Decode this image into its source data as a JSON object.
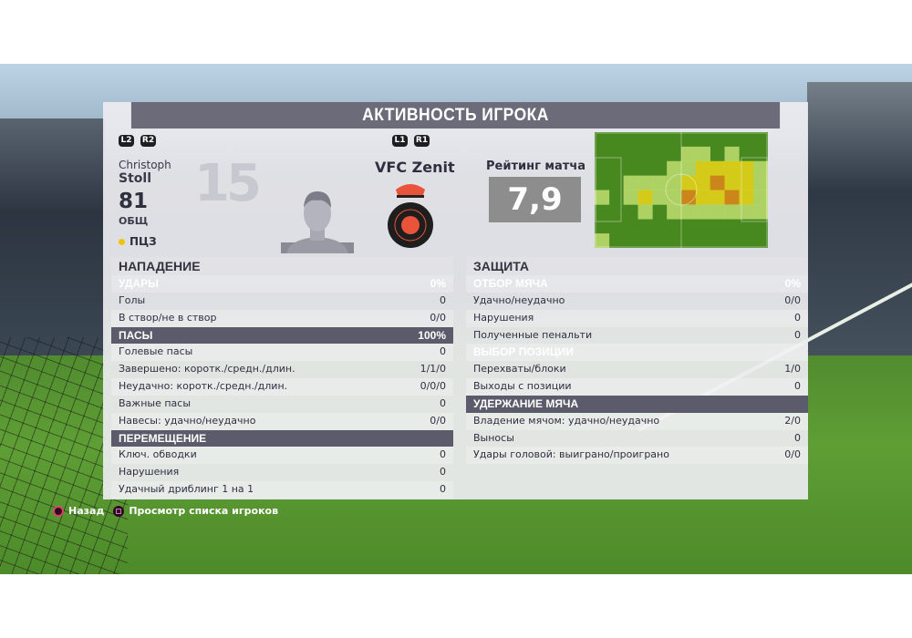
{
  "title": "АКТИВНОСТЬ ИГРОКА",
  "buttons": {
    "l2": "L2",
    "r2": "R2",
    "l1": "L1",
    "r1": "R1"
  },
  "player": {
    "first_name": "Christoph",
    "last_name": "Stoll",
    "number": "15",
    "overall": "81",
    "overall_label": "ОБЩ",
    "position": "ПЦЗ",
    "position_color": "#f2c200"
  },
  "team": {
    "name": "VFC Zenit",
    "badge_color": "#e8533a"
  },
  "rating": {
    "label": "Рейтинг матча",
    "value": "7,9"
  },
  "heatmap": {
    "cols": 12,
    "rows": 8,
    "colors": [
      "#47891f",
      "#b9d96a",
      "#e2d21a",
      "#d8861a"
    ],
    "levels": [
      [
        0,
        0,
        0,
        0,
        0,
        0,
        0,
        0,
        0,
        0,
        0,
        0
      ],
      [
        0,
        0,
        0,
        0,
        0,
        0,
        1,
        1,
        0,
        1,
        0,
        0
      ],
      [
        0,
        0,
        0,
        0,
        0,
        1,
        1,
        2,
        2,
        2,
        2,
        1
      ],
      [
        0,
        0,
        1,
        1,
        1,
        1,
        2,
        2,
        3,
        2,
        2,
        1
      ],
      [
        1,
        0,
        1,
        2,
        1,
        1,
        3,
        2,
        2,
        3,
        2,
        1
      ],
      [
        0,
        0,
        0,
        1,
        0,
        1,
        1,
        1,
        1,
        1,
        1,
        1
      ],
      [
        0,
        0,
        0,
        0,
        0,
        0,
        0,
        0,
        0,
        0,
        0,
        0
      ],
      [
        1,
        0,
        0,
        0,
        0,
        0,
        0,
        0,
        0,
        0,
        0,
        0
      ]
    ]
  },
  "attack": {
    "title": "НАПАДЕНИЕ",
    "rows": [
      {
        "label": "УДАРЫ",
        "value": "0%",
        "header": true
      },
      {
        "label": "Голы",
        "value": "0"
      },
      {
        "label": "В створ/не в створ",
        "value": "0/0"
      },
      {
        "label": "ПАСЫ",
        "value": "100%",
        "header": true
      },
      {
        "label": "Голевые пасы",
        "value": "0"
      },
      {
        "label": "Завершено: коротк./средн./длин.",
        "value": "1/1/0"
      },
      {
        "label": "Неудачно: коротк./средн./длин.",
        "value": "0/0/0"
      },
      {
        "label": "Важные пасы",
        "value": "0"
      },
      {
        "label": "Навесы: удачно/неудачно",
        "value": "0/0"
      },
      {
        "label": "ПЕРЕМЕЩЕНИЕ",
        "value": "",
        "header": true
      },
      {
        "label": "Ключ. обводки",
        "value": "0"
      },
      {
        "label": "Нарушения",
        "value": "0"
      },
      {
        "label": "Удачный дриблинг 1 на 1",
        "value": "0"
      }
    ]
  },
  "defense": {
    "title": "ЗАЩИТА",
    "rows": [
      {
        "label": "ОТБОР МЯЧА",
        "value": "0%",
        "header": true
      },
      {
        "label": "Удачно/неудачно",
        "value": "0/0"
      },
      {
        "label": "Нарушения",
        "value": "0"
      },
      {
        "label": "Полученные пенальти",
        "value": "0"
      },
      {
        "label": "ВЫБОР ПОЗИЦИИ",
        "value": "",
        "header": true
      },
      {
        "label": "Перехваты/блоки",
        "value": "1/0"
      },
      {
        "label": "Выходы с позиции",
        "value": "0"
      },
      {
        "label": "УДЕРЖАНИЕ МЯЧА",
        "value": "",
        "header": true
      },
      {
        "label": "Владение мячом: удачно/неудачно",
        "value": "2/0"
      },
      {
        "label": "Выносы",
        "value": "0"
      },
      {
        "label": "Удары головой: выиграно/проиграно",
        "value": "0/0"
      }
    ]
  },
  "footer": {
    "back": "Назад",
    "view_list": "Просмотр списка игроков"
  }
}
